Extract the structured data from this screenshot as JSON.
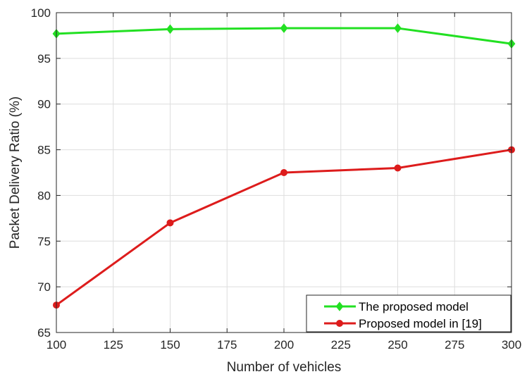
{
  "chart_data": {
    "type": "line",
    "xlabel": "Number of vehicles",
    "ylabel": "Packet Delivery Ratio  (%)",
    "xlim": [
      100,
      300
    ],
    "ylim": [
      65,
      100
    ],
    "xticks": [
      100,
      125,
      150,
      175,
      200,
      225,
      250,
      275,
      300
    ],
    "yticks": [
      65,
      70,
      75,
      80,
      85,
      90,
      95,
      100
    ],
    "grid": true,
    "legend_position": "bottom-right",
    "series": [
      {
        "name": "The proposed model",
        "color": "#22e022",
        "marker": "diamond",
        "x": [
          100,
          150,
          200,
          250,
          300
        ],
        "y": [
          97.7,
          98.2,
          98.3,
          98.3,
          96.6
        ]
      },
      {
        "name": "Proposed model in [19]",
        "color": "#dd1c1c",
        "marker": "circle",
        "x": [
          100,
          150,
          200,
          250,
          300
        ],
        "y": [
          68,
          77,
          82.5,
          83,
          85
        ]
      }
    ]
  }
}
